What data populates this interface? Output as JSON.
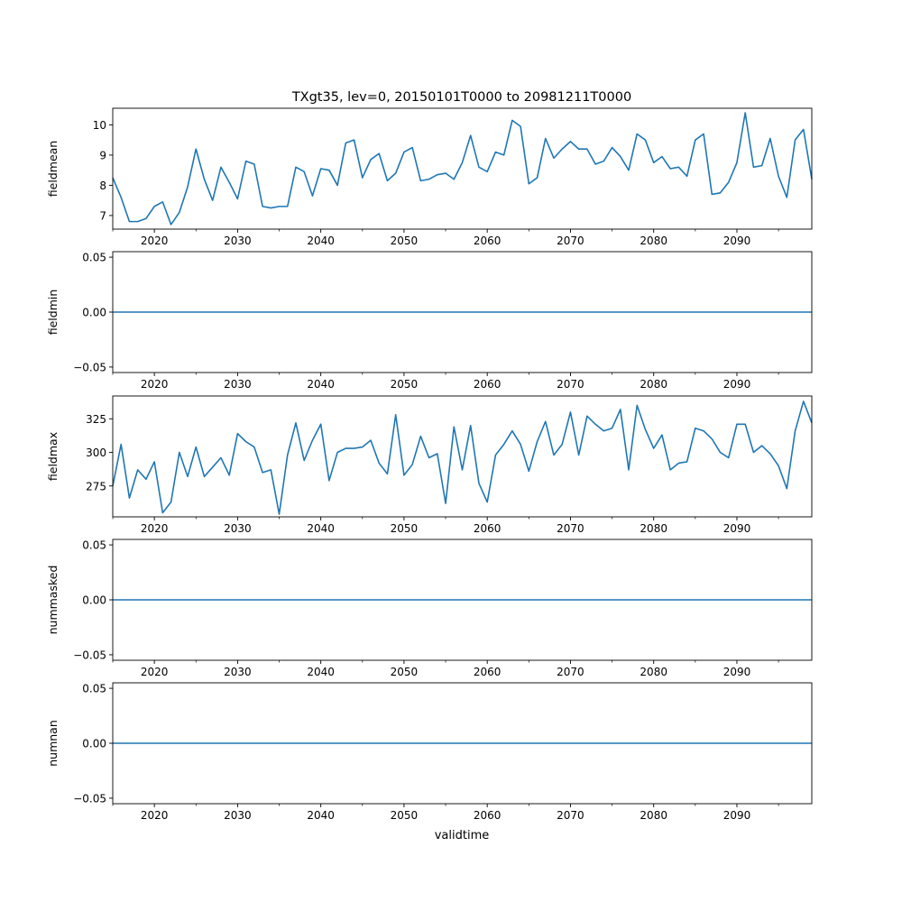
{
  "chart_data": {
    "type": "line",
    "title": "TXgt35, lev=0, 20150101T0000 to 20981211T0000",
    "xlabel": "validtime",
    "line_color": "#1f77b4",
    "x": [
      2015,
      2016,
      2017,
      2018,
      2019,
      2020,
      2021,
      2022,
      2023,
      2024,
      2025,
      2026,
      2027,
      2028,
      2029,
      2030,
      2031,
      2032,
      2033,
      2034,
      2035,
      2036,
      2037,
      2038,
      2039,
      2040,
      2041,
      2042,
      2043,
      2044,
      2045,
      2046,
      2047,
      2048,
      2049,
      2050,
      2051,
      2052,
      2053,
      2054,
      2055,
      2056,
      2057,
      2058,
      2059,
      2060,
      2061,
      2062,
      2063,
      2064,
      2065,
      2066,
      2067,
      2068,
      2069,
      2070,
      2071,
      2072,
      2073,
      2074,
      2075,
      2076,
      2077,
      2078,
      2079,
      2080,
      2081,
      2082,
      2083,
      2084,
      2085,
      2086,
      2087,
      2088,
      2089,
      2090,
      2091,
      2092,
      2093,
      2094,
      2095,
      2096,
      2097,
      2098,
      2099
    ],
    "xlim": [
      2015,
      2099
    ],
    "xticks": [
      2020,
      2030,
      2040,
      2050,
      2060,
      2070,
      2080,
      2090
    ],
    "xtick_labels": [
      "2020",
      "2030",
      "2040",
      "2050",
      "2060",
      "2070",
      "2080",
      "2090"
    ],
    "minor_xticks": [
      2015,
      2025,
      2035,
      2045,
      2055,
      2065,
      2075,
      2085,
      2095
    ],
    "panels": [
      {
        "ylabel": "fieldmean",
        "ylim": [
          6.55,
          10.55
        ],
        "yticks": [
          7,
          8,
          9,
          10
        ],
        "ytick_labels": [
          "7",
          "8",
          "9",
          "10"
        ],
        "values": [
          8.25,
          7.6,
          6.8,
          6.8,
          6.9,
          7.3,
          7.45,
          6.7,
          7.1,
          7.95,
          9.2,
          8.2,
          7.5,
          8.6,
          8.1,
          7.55,
          8.8,
          8.7,
          7.3,
          7.25,
          7.3,
          7.3,
          8.6,
          8.45,
          7.65,
          8.55,
          8.5,
          8.0,
          9.4,
          9.5,
          8.25,
          8.85,
          9.05,
          8.15,
          8.4,
          9.1,
          9.25,
          8.15,
          8.2,
          8.35,
          8.4,
          8.2,
          8.75,
          9.65,
          8.6,
          8.45,
          9.1,
          9.0,
          10.15,
          9.95,
          8.05,
          8.25,
          9.55,
          8.9,
          9.2,
          9.45,
          9.2,
          9.2,
          8.7,
          8.8,
          9.25,
          8.95,
          8.5,
          9.7,
          9.5,
          8.75,
          8.95,
          8.55,
          8.6,
          8.3,
          9.5,
          9.7,
          7.7,
          7.75,
          8.1,
          8.75,
          10.4,
          8.6,
          8.65,
          9.55,
          8.3,
          7.6,
          9.5,
          9.85,
          8.2
        ]
      },
      {
        "ylabel": "fieldmin",
        "ylim": [
          -0.055,
          0.055
        ],
        "yticks": [
          -0.05,
          0.0,
          0.05
        ],
        "ytick_labels": [
          "−0.05",
          "0.00",
          "0.05"
        ],
        "constant": 0
      },
      {
        "ylabel": "fieldmax",
        "ylim": [
          252,
          342
        ],
        "yticks": [
          275,
          300,
          325
        ],
        "ytick_labels": [
          "275",
          "300",
          "325"
        ],
        "values": [
          275,
          306,
          266,
          287,
          280,
          293,
          255,
          263,
          300,
          282,
          304,
          282,
          289,
          296,
          283,
          314,
          308,
          304,
          285,
          287,
          254,
          298,
          322,
          294,
          309,
          321,
          279,
          300,
          303,
          303,
          304,
          309,
          292,
          284,
          328,
          283,
          291,
          312,
          296,
          299,
          262,
          319,
          287,
          320,
          277,
          263,
          298,
          306,
          316,
          306,
          286,
          308,
          323,
          298,
          306,
          330,
          298,
          327,
          321,
          316,
          318,
          332,
          287,
          335,
          317,
          303,
          313,
          287,
          292,
          293,
          318,
          316,
          310,
          300,
          296,
          321,
          321,
          300,
          305,
          299,
          290,
          273,
          316,
          338,
          322
        ]
      },
      {
        "ylabel": "nummasked",
        "ylim": [
          -0.055,
          0.055
        ],
        "yticks": [
          -0.05,
          0.0,
          0.05
        ],
        "ytick_labels": [
          "−0.05",
          "0.00",
          "0.05"
        ],
        "constant": 0
      },
      {
        "ylabel": "numnan",
        "ylim": [
          -0.055,
          0.055
        ],
        "yticks": [
          -0.05,
          0.0,
          0.05
        ],
        "ytick_labels": [
          "−0.05",
          "0.00",
          "0.05"
        ],
        "constant": 0
      }
    ]
  }
}
